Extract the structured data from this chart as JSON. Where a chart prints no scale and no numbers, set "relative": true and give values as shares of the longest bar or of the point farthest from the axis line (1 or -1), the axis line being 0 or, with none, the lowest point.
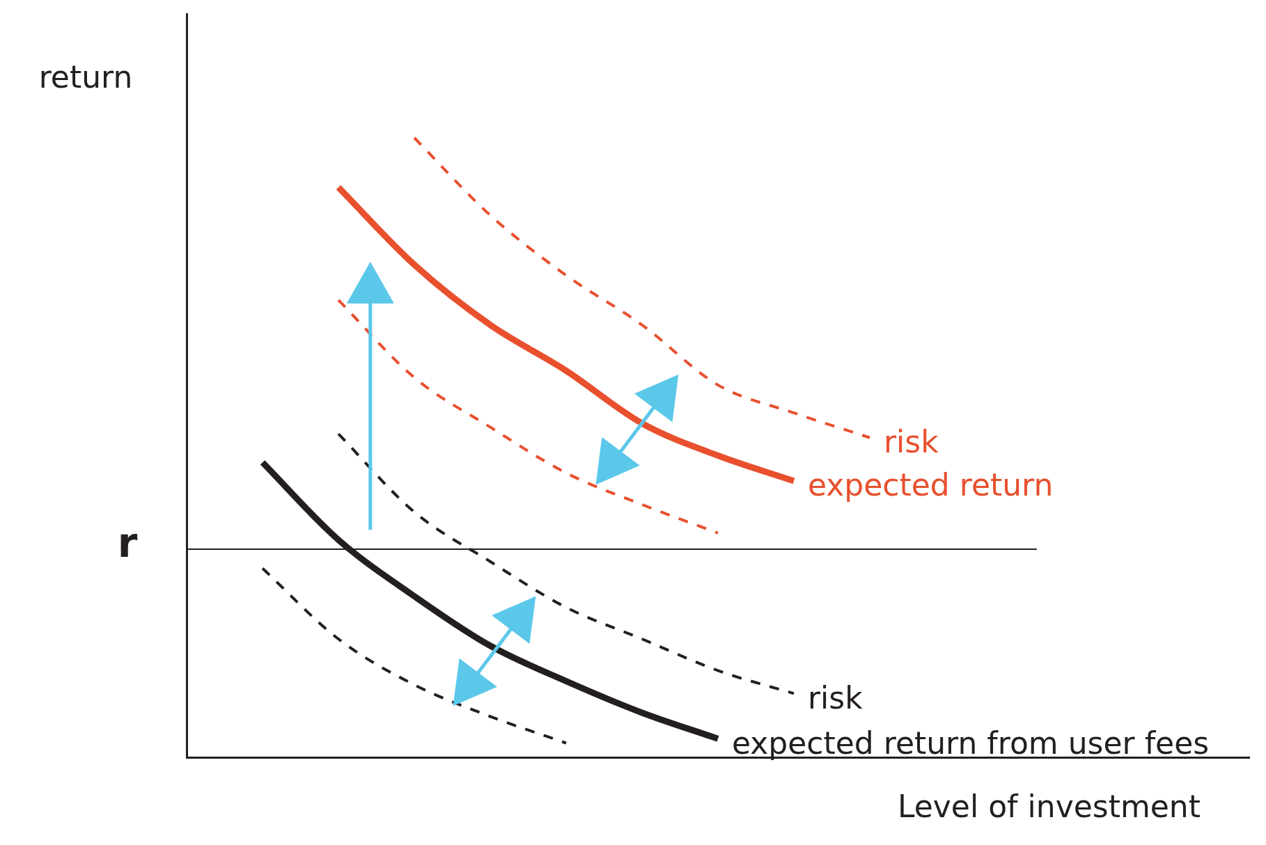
{
  "chart_data": {
    "type": "line",
    "relative": true,
    "xlabel": "Level of investment",
    "ylabel": "return",
    "categories": [
      null,
      null,
      null,
      null,
      null,
      null,
      null,
      null,
      null,
      null,
      null,
      null,
      null,
      null,
      null
    ],
    "series": [
      {
        "name": "expected return",
        "color": "#e8502e",
        "line_style": "solid",
        "values": [
          null,
          null,
          0.92,
          0.795,
          0.698,
          0.624,
          0.539,
          0.487,
          0.446,
          null,
          null,
          null,
          null,
          null,
          null
        ]
      },
      {
        "name": "risk",
        "color": "#e8502e",
        "line_style": "dashed",
        "values": [
          null,
          null,
          null,
          1,
          0.875,
          0.778,
          0.698,
          0.601,
          0.556,
          0.516,
          null,
          null,
          null,
          null,
          null
        ]
      },
      {
        "color": "#e8502e",
        "line_style": "dashed",
        "values": [
          null,
          null,
          0.738,
          0.613,
          0.533,
          0.459,
          0.408,
          0.362,
          null,
          null,
          null,
          null,
          null,
          null,
          null
        ]
      },
      {
        "name": "expected return from user fees",
        "color": "#231f20",
        "line_style": "solid",
        "values": [
          null,
          0.476,
          0.351,
          0.26,
          0.18,
          0.123,
          0.072,
          0.03,
          null,
          null,
          null,
          null,
          null,
          null,
          null
        ]
      },
      {
        "name": "risk",
        "color": "#231f20",
        "line_style": "dashed",
        "values": [
          null,
          null,
          0.522,
          0.396,
          0.316,
          0.242,
          0.191,
          0.14,
          0.103,
          null,
          null,
          null,
          null,
          null,
          null
        ]
      },
      {
        "color": "#231f20",
        "line_style": "dashed",
        "values": [
          null,
          0.305,
          0.191,
          0.117,
          0.066,
          0.023,
          null,
          null,
          null,
          null,
          null,
          null,
          null,
          null,
          null
        ]
      }
    ],
    "ref_lines": [
      {
        "axis": "y",
        "value": 0.336,
        "label": "r",
        "color": "#231f20"
      }
    ],
    "grid": false,
    "legend": false,
    "marker": "none"
  }
}
